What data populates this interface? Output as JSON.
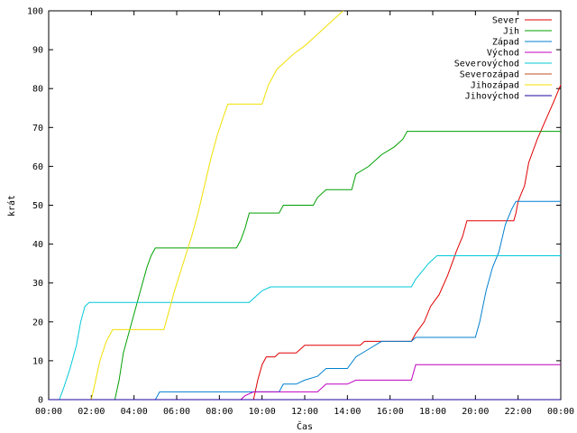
{
  "chart_data": {
    "type": "line",
    "title": "",
    "xlabel": "Čas",
    "ylabel": "krát",
    "xlim": [
      0,
      24
    ],
    "ylim": [
      0,
      100
    ],
    "x_unit": "hours",
    "xticks": [
      {
        "value": 0,
        "label": "00:00"
      },
      {
        "value": 2,
        "label": "02:00"
      },
      {
        "value": 4,
        "label": "04:00"
      },
      {
        "value": 6,
        "label": "06:00"
      },
      {
        "value": 8,
        "label": "08:00"
      },
      {
        "value": 10,
        "label": "10:00"
      },
      {
        "value": 12,
        "label": "12:00"
      },
      {
        "value": 14,
        "label": "14:00"
      },
      {
        "value": 16,
        "label": "16:00"
      },
      {
        "value": 18,
        "label": "18:00"
      },
      {
        "value": 20,
        "label": "20:00"
      },
      {
        "value": 22,
        "label": "22:00"
      },
      {
        "value": 24,
        "label": "00:00"
      }
    ],
    "yticks": [
      0,
      10,
      20,
      30,
      40,
      50,
      60,
      70,
      80,
      90,
      100
    ],
    "grid": false,
    "legend": "top-right",
    "series": [
      {
        "name": "Sever",
        "color": "#e00000",
        "points": [
          [
            0,
            0
          ],
          [
            9.6,
            0
          ],
          [
            9.8,
            5
          ],
          [
            10.0,
            9
          ],
          [
            10.2,
            11
          ],
          [
            10.6,
            11
          ],
          [
            10.8,
            12
          ],
          [
            11.6,
            12
          ],
          [
            11.8,
            13
          ],
          [
            12.0,
            14
          ],
          [
            14.6,
            14
          ],
          [
            14.8,
            15
          ],
          [
            17.0,
            15
          ],
          [
            17.2,
            17
          ],
          [
            17.6,
            20
          ],
          [
            17.9,
            24
          ],
          [
            18.3,
            27
          ],
          [
            18.7,
            32
          ],
          [
            19.1,
            38
          ],
          [
            19.4,
            42
          ],
          [
            19.6,
            46
          ],
          [
            21.8,
            46
          ],
          [
            21.9,
            48
          ],
          [
            22.0,
            51
          ],
          [
            22.3,
            55
          ],
          [
            22.5,
            61
          ],
          [
            22.9,
            67
          ],
          [
            23.3,
            72
          ],
          [
            23.7,
            77
          ],
          [
            24.0,
            81
          ]
        ]
      },
      {
        "name": "Jih",
        "color": "#00a000",
        "points": [
          [
            0,
            0
          ],
          [
            3.1,
            0
          ],
          [
            3.3,
            5
          ],
          [
            3.5,
            12
          ],
          [
            3.8,
            18
          ],
          [
            4.1,
            24
          ],
          [
            4.4,
            30
          ],
          [
            4.6,
            34
          ],
          [
            4.8,
            37
          ],
          [
            5.0,
            39
          ],
          [
            8.8,
            39
          ],
          [
            9.0,
            41
          ],
          [
            9.2,
            44
          ],
          [
            9.4,
            48
          ],
          [
            10.8,
            48
          ],
          [
            11.0,
            50
          ],
          [
            12.4,
            50
          ],
          [
            12.6,
            52
          ],
          [
            13.0,
            54
          ],
          [
            14.2,
            54
          ],
          [
            14.4,
            58
          ],
          [
            15.0,
            60
          ],
          [
            15.6,
            63
          ],
          [
            16.2,
            65
          ],
          [
            16.6,
            67
          ],
          [
            16.8,
            69
          ],
          [
            24.0,
            69
          ]
        ]
      },
      {
        "name": "Západ",
        "color": "#0080d0",
        "points": [
          [
            0,
            0
          ],
          [
            5.0,
            0
          ],
          [
            5.2,
            2
          ],
          [
            10.8,
            2
          ],
          [
            11.0,
            4
          ],
          [
            11.6,
            4
          ],
          [
            12.0,
            5
          ],
          [
            12.6,
            6
          ],
          [
            13.0,
            8
          ],
          [
            14.0,
            8
          ],
          [
            14.4,
            11
          ],
          [
            15.0,
            13
          ],
          [
            15.6,
            15
          ],
          [
            17.0,
            15
          ],
          [
            17.2,
            16
          ],
          [
            20.0,
            16
          ],
          [
            20.2,
            20
          ],
          [
            20.5,
            28
          ],
          [
            20.8,
            34
          ],
          [
            21.1,
            38
          ],
          [
            21.4,
            45
          ],
          [
            21.7,
            49
          ],
          [
            21.9,
            51
          ],
          [
            24.0,
            51
          ]
        ]
      },
      {
        "name": "Východ",
        "color": "#c000c0",
        "points": [
          [
            0,
            0
          ],
          [
            9.0,
            0
          ],
          [
            9.2,
            1
          ],
          [
            9.6,
            2
          ],
          [
            12.6,
            2
          ],
          [
            12.8,
            3
          ],
          [
            13.0,
            4
          ],
          [
            14.0,
            4
          ],
          [
            14.4,
            5
          ],
          [
            17.0,
            5
          ],
          [
            17.2,
            9
          ],
          [
            24.0,
            9
          ]
        ]
      },
      {
        "name": "Severovýchod",
        "color": "#00c8d8",
        "points": [
          [
            0,
            0
          ],
          [
            0.5,
            0
          ],
          [
            0.7,
            3
          ],
          [
            1.0,
            8
          ],
          [
            1.3,
            14
          ],
          [
            1.5,
            20
          ],
          [
            1.7,
            24
          ],
          [
            1.9,
            25
          ],
          [
            9.4,
            25
          ],
          [
            9.6,
            26
          ],
          [
            9.8,
            27
          ],
          [
            10.0,
            28
          ],
          [
            10.4,
            29
          ],
          [
            17.0,
            29
          ],
          [
            17.2,
            31
          ],
          [
            17.5,
            33
          ],
          [
            17.8,
            35
          ],
          [
            18.2,
            37
          ],
          [
            24.0,
            37
          ]
        ]
      },
      {
        "name": "Severozápad",
        "color": "#c05020",
        "points": [
          [
            0,
            0
          ],
          [
            19.4,
            0
          ],
          [
            19.6,
            0
          ],
          [
            21.8,
            0
          ],
          [
            22.0,
            0
          ],
          [
            24.0,
            0
          ]
        ]
      },
      {
        "name": "Jihozápad",
        "color": "#f0e000",
        "points": [
          [
            0,
            0
          ],
          [
            2.0,
            0
          ],
          [
            2.2,
            5
          ],
          [
            2.4,
            10
          ],
          [
            2.7,
            15
          ],
          [
            3.0,
            18
          ],
          [
            5.4,
            18
          ],
          [
            5.6,
            22
          ],
          [
            5.9,
            28
          ],
          [
            6.3,
            35
          ],
          [
            6.7,
            42
          ],
          [
            7.0,
            48
          ],
          [
            7.3,
            55
          ],
          [
            7.6,
            62
          ],
          [
            7.9,
            68
          ],
          [
            8.2,
            73
          ],
          [
            8.4,
            76
          ],
          [
            10.0,
            76
          ],
          [
            10.3,
            81
          ],
          [
            10.7,
            85
          ],
          [
            11.1,
            87
          ],
          [
            11.5,
            89
          ],
          [
            12.0,
            91
          ],
          [
            12.4,
            93
          ],
          [
            12.8,
            95
          ],
          [
            13.2,
            97
          ],
          [
            13.6,
            99
          ],
          [
            13.8,
            100
          ]
        ]
      },
      {
        "name": "Jihovýchod",
        "color": "#2000a0",
        "points": [
          [
            0,
            0
          ],
          [
            24.0,
            0
          ]
        ]
      }
    ]
  }
}
